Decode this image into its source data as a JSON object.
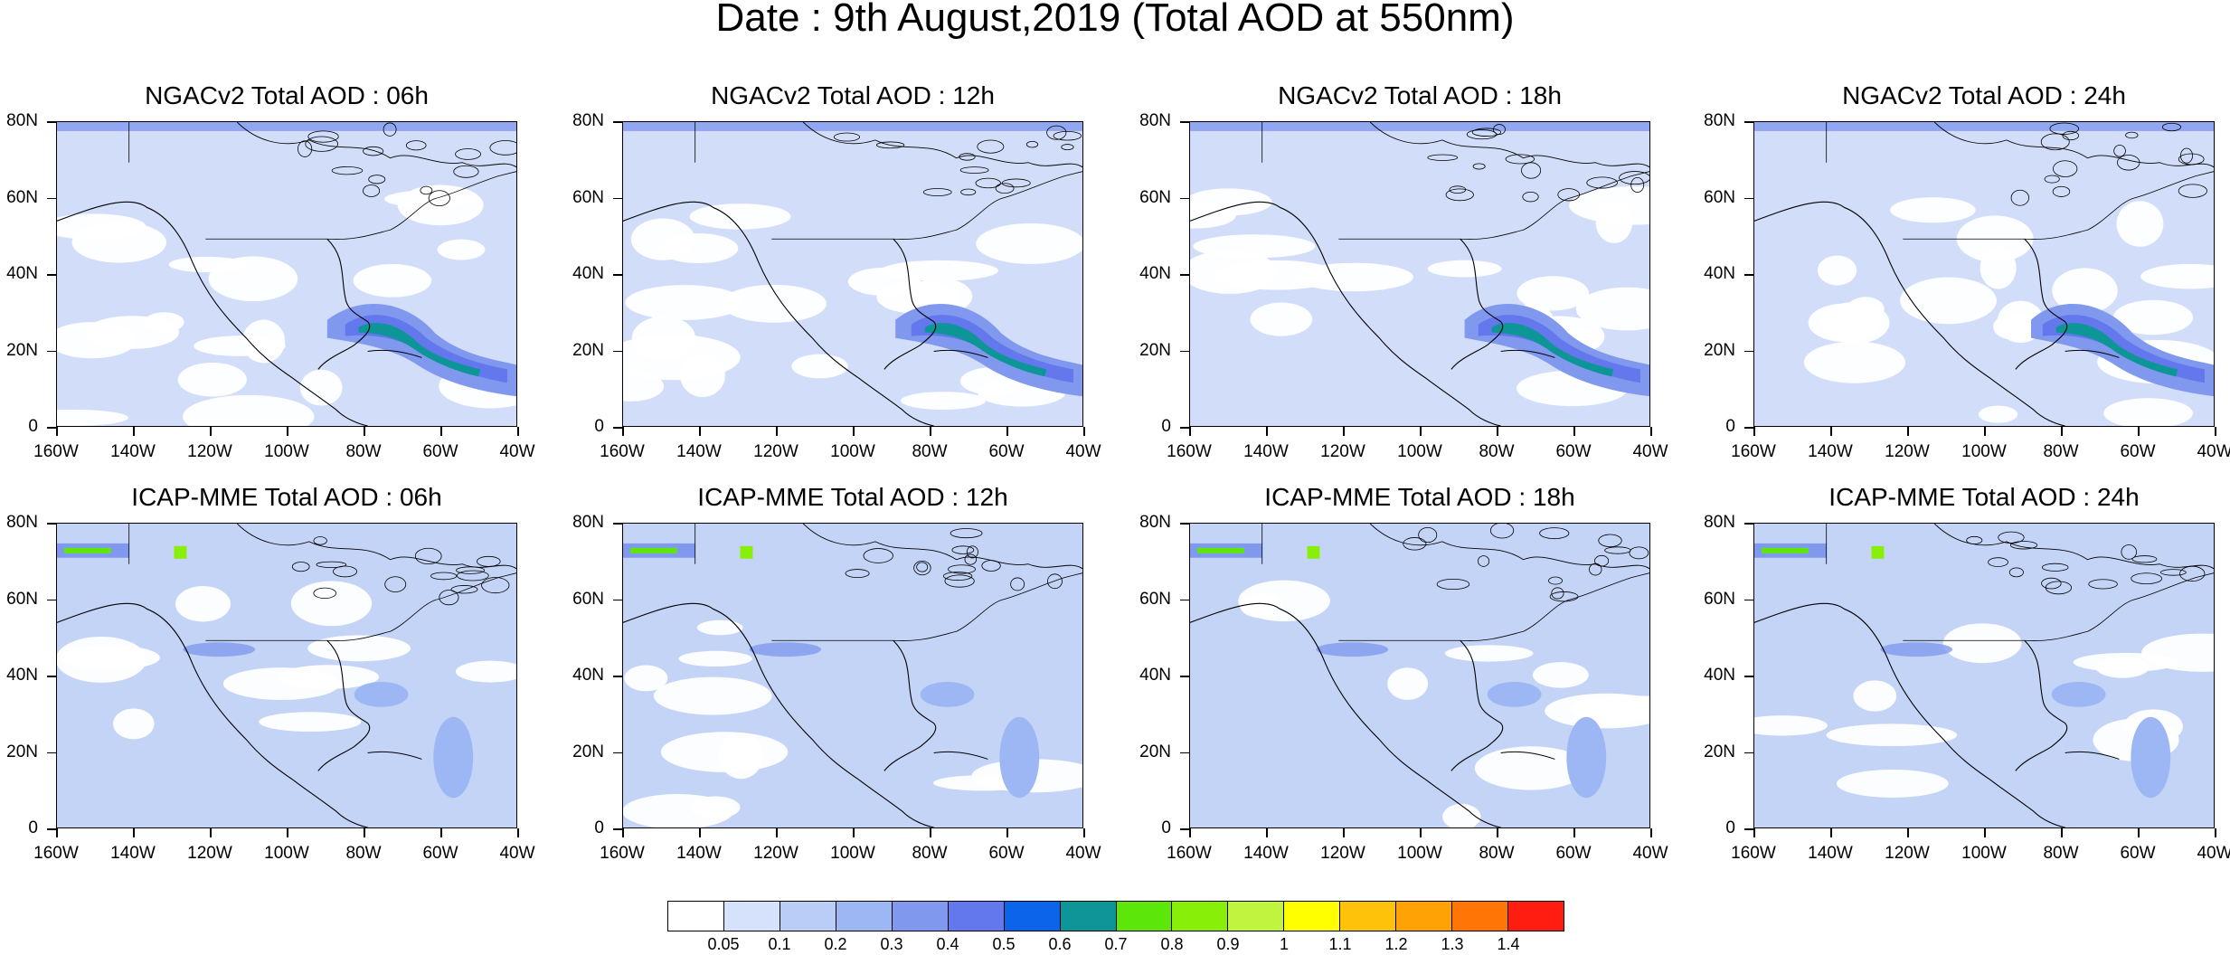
{
  "title": "Date : 9th August,2019 (Total AOD at 550nm)",
  "panels": [
    {
      "title": "NGACv2 Total AOD : 06h",
      "model": "NGACv2",
      "hour": "06h"
    },
    {
      "title": "NGACv2 Total AOD : 12h",
      "model": "NGACv2",
      "hour": "12h"
    },
    {
      "title": "NGACv2 Total AOD : 18h",
      "model": "NGACv2",
      "hour": "18h"
    },
    {
      "title": "NGACv2 Total AOD : 24h",
      "model": "NGACv2",
      "hour": "24h"
    },
    {
      "title": "ICAP-MME Total AOD : 06h",
      "model": "ICAP-MME",
      "hour": "06h"
    },
    {
      "title": "ICAP-MME Total AOD : 12h",
      "model": "ICAP-MME",
      "hour": "12h"
    },
    {
      "title": "ICAP-MME Total AOD : 18h",
      "model": "ICAP-MME",
      "hour": "18h"
    },
    {
      "title": "ICAP-MME Total AOD : 24h",
      "model": "ICAP-MME",
      "hour": "24h"
    }
  ],
  "axes": {
    "lat_labels": [
      "80N",
      "60N",
      "40N",
      "20N",
      "0"
    ],
    "lon_labels": [
      "160W",
      "140W",
      "120W",
      "100W",
      "80W",
      "60W",
      "40W"
    ]
  },
  "colorbar": {
    "labels": [
      "0.05",
      "0.1",
      "0.2",
      "0.3",
      "0.4",
      "0.5",
      "0.6",
      "0.7",
      "0.8",
      "0.9",
      "1",
      "1.1",
      "1.2",
      "1.3",
      "1.4"
    ],
    "colors": [
      "#ffffff",
      "#d6e2fb",
      "#b9cdf7",
      "#9cb7f3",
      "#8198ef",
      "#6378ec",
      "#0b64ea",
      "#0d9598",
      "#5ce60a",
      "#88ef09",
      "#c0f43f",
      "#ffff00",
      "#ffc20a",
      "#ffa206",
      "#ff7506",
      "#ff1d12"
    ]
  }
}
